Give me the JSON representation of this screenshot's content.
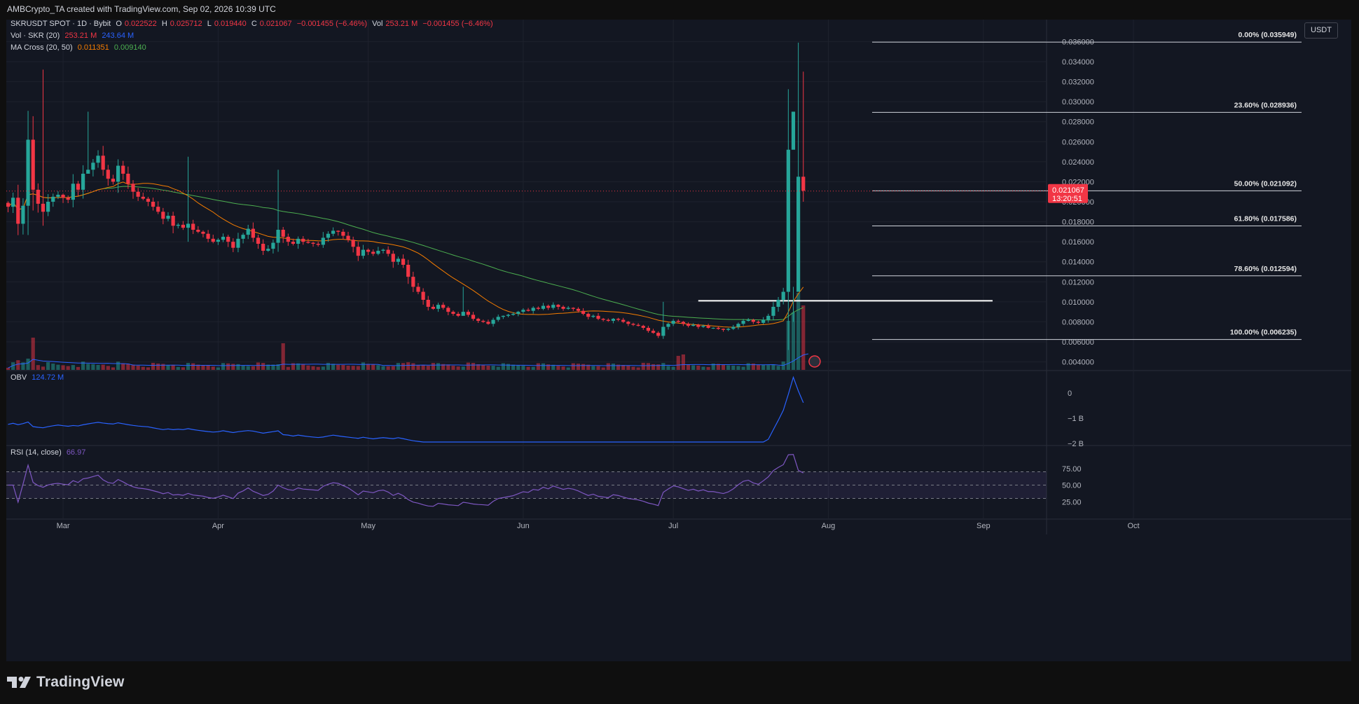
{
  "header": {
    "caption": "AMBCrypto_TA created with TradingView.com, Sep 02, 2026 10:39 UTC"
  },
  "legend": {
    "symbol": "SKRUSDT SPOT · 1D · Bybit",
    "o_label": "O",
    "o_value": "0.022522",
    "h_label": "H",
    "h_value": "0.025712",
    "l_label": "L",
    "l_value": "0.019440",
    "c_label": "C",
    "c_value": "0.021067",
    "change": "−0.001455 (−6.46%)",
    "vol_label": "Vol",
    "vol_value": "253.21 M",
    "vol_change": "−0.001455 (−6.46%)",
    "vol_ind_label": "Vol · SKR (20)",
    "vol_ind_v1": "253.21 M",
    "vol_ind_v2": "243.64 M",
    "ma_label": "MA Cross (20, 50)",
    "ma_fast": "0.011351",
    "ma_slow": "0.009140"
  },
  "currency_button": "USDT",
  "price_tag": {
    "value": "0.021067",
    "countdown": "13:20:51"
  },
  "colors": {
    "bg": "#131722",
    "up": "#26a69a",
    "down": "#f23645",
    "ma20": "#f57c00",
    "ma50": "#4caf50",
    "obv": "#2962ff",
    "rsi": "#7e57c2",
    "fib": "#d1d4dc"
  },
  "obv_panel": {
    "label": "OBV",
    "value": "124.72 M",
    "ticks": [
      "0",
      "−1 B",
      "−2 B"
    ]
  },
  "rsi_panel": {
    "label": "RSI (14, close)",
    "value": "66.97",
    "ticks": [
      "75.00",
      "50.00",
      "25.00"
    ]
  },
  "brand": "TradingView",
  "chart_data": {
    "type": "candlestick",
    "symbol": "SKRUSDT",
    "interval": "1D",
    "x_ticks": [
      "Mar",
      "Apr",
      "May",
      "Jun",
      "Jul",
      "Aug",
      "Sep",
      "Oct"
    ],
    "y_ticks": [
      "0.036000",
      "0.034000",
      "0.032000",
      "0.030000",
      "0.028000",
      "0.026000",
      "0.024000",
      "0.022000",
      "0.020000",
      "0.018000",
      "0.016000",
      "0.014000",
      "0.012000",
      "0.010000",
      "0.008000",
      "0.006000",
      "0.004000"
    ],
    "ylim": [
      0.0032,
      0.0375
    ],
    "start_date": "2026-02-18",
    "fib_levels": [
      {
        "label": "0.00% (0.035949)",
        "value": 0.035949
      },
      {
        "label": "23.60% (0.028936)",
        "value": 0.028936
      },
      {
        "label": "50.00% (0.021092)",
        "value": 0.021092
      },
      {
        "label": "61.80% (0.017586)",
        "value": 0.017586
      },
      {
        "label": "78.60% (0.012594)",
        "value": 0.012594
      },
      {
        "label": "100.00% (0.006235)",
        "value": 0.006235
      }
    ],
    "resistance": {
      "from": "2026-07-06",
      "to": "2026-09-02",
      "value": 0.0101
    },
    "close": [
      0.0195,
      0.0204,
      0.0178,
      0.0196,
      0.0262,
      0.0212,
      0.0198,
      0.019,
      0.02,
      0.0205,
      0.0207,
      0.0204,
      0.0202,
      0.0218,
      0.0212,
      0.0228,
      0.0232,
      0.0239,
      0.0246,
      0.0232,
      0.0223,
      0.022,
      0.0236,
      0.0228,
      0.0218,
      0.021,
      0.0205,
      0.0203,
      0.02,
      0.0195,
      0.019,
      0.0183,
      0.0186,
      0.0176,
      0.0177,
      0.0174,
      0.0178,
      0.0172,
      0.017,
      0.0168,
      0.0163,
      0.016,
      0.0162,
      0.0165,
      0.016,
      0.0154,
      0.0163,
      0.0167,
      0.0173,
      0.0164,
      0.0158,
      0.0151,
      0.0153,
      0.0159,
      0.0172,
      0.0165,
      0.016,
      0.0158,
      0.0163,
      0.016,
      0.0159,
      0.0158,
      0.0157,
      0.0164,
      0.0168,
      0.0171,
      0.017,
      0.0166,
      0.0162,
      0.0155,
      0.0146,
      0.0152,
      0.015,
      0.0148,
      0.0151,
      0.0152,
      0.0148,
      0.014,
      0.0143,
      0.0137,
      0.0125,
      0.0115,
      0.011,
      0.0102,
      0.0095,
      0.0093,
      0.0097,
      0.0094,
      0.009,
      0.0088,
      0.0086,
      0.009,
      0.0087,
      0.0083,
      0.0081,
      0.008,
      0.0078,
      0.0082,
      0.0085,
      0.0086,
      0.0087,
      0.0088,
      0.009,
      0.0092,
      0.0091,
      0.0094,
      0.0093,
      0.0096,
      0.0094,
      0.0097,
      0.0095,
      0.0093,
      0.0094,
      0.0093,
      0.0091,
      0.0088,
      0.0085,
      0.0086,
      0.0083,
      0.0082,
      0.0081,
      0.0083,
      0.0082,
      0.008,
      0.0078,
      0.0077,
      0.0076,
      0.0074,
      0.0071,
      0.0069,
      0.0066,
      0.0075,
      0.0078,
      0.0081,
      0.008,
      0.0078,
      0.0076,
      0.0077,
      0.0075,
      0.0076,
      0.0074,
      0.0074,
      0.0073,
      0.0072,
      0.0073,
      0.0075,
      0.0078,
      0.0081,
      0.0082,
      0.008,
      0.0079,
      0.0082,
      0.0086,
      0.0095,
      0.0102,
      0.011,
      0.0252,
      0.029,
      0.0225,
      0.0211
    ]
  }
}
